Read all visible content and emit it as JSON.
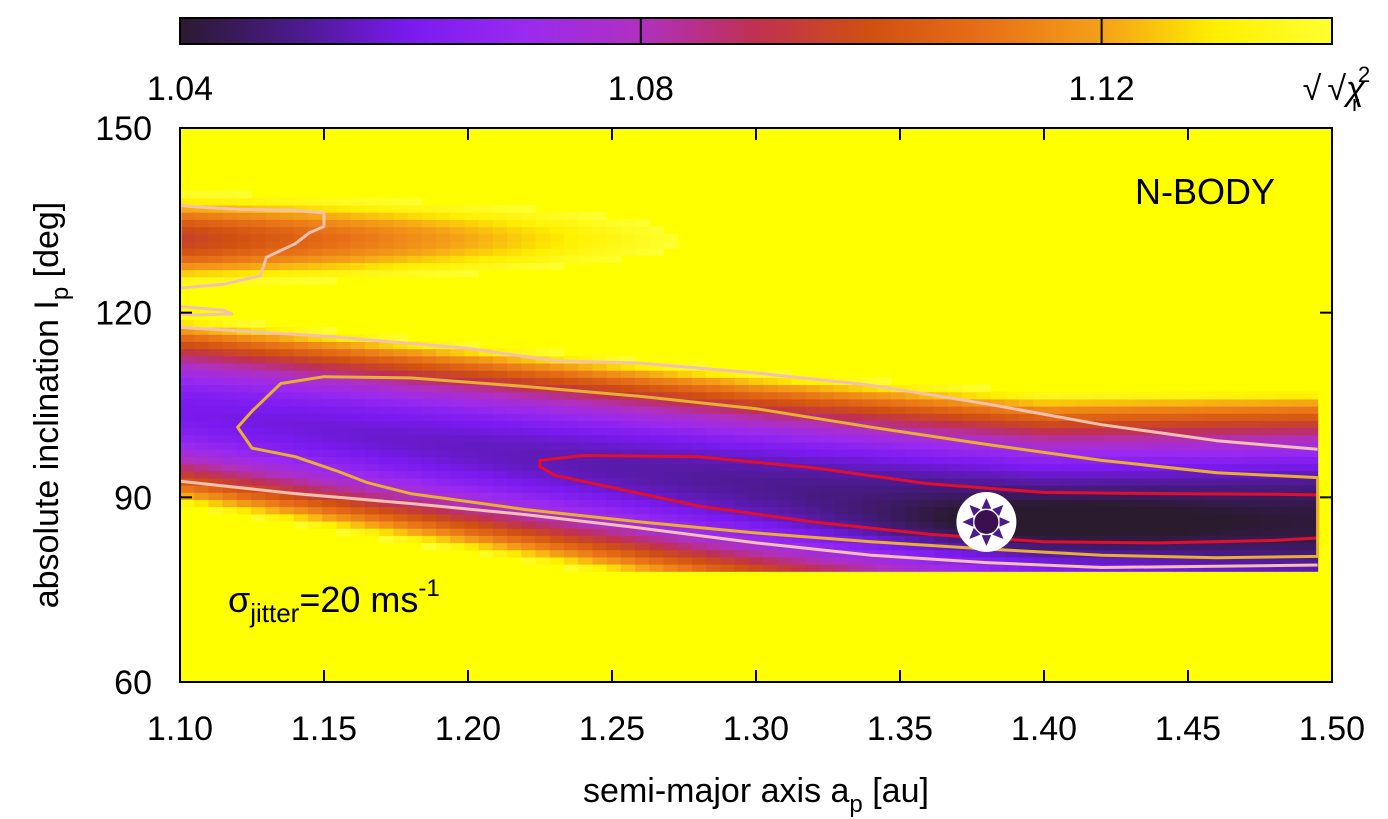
{
  "chart_data": {
    "type": "heatmap",
    "panel_label": "N-BODY",
    "x_axis": {
      "label_prefix": "semi-major axis a",
      "label_sub": "p",
      "label_suffix": " [au]",
      "range": [
        1.1,
        1.5
      ],
      "ticks": [
        1.1,
        1.15,
        1.2,
        1.25,
        1.3,
        1.35,
        1.4,
        1.45,
        1.5
      ],
      "tick_labels": [
        "1.10",
        "1.15",
        "1.20",
        "1.25",
        "1.30",
        "1.35",
        "1.40",
        "1.45",
        "1.50"
      ]
    },
    "y_axis": {
      "label_prefix": "absolute inclination I",
      "label_sub": "p",
      "label_suffix": " [deg]",
      "range": [
        60,
        150
      ],
      "ticks": [
        60,
        90,
        120,
        150
      ],
      "tick_labels": [
        "60",
        "90",
        "120",
        "150"
      ]
    },
    "colorbar": {
      "range": [
        1.04,
        1.14
      ],
      "ticks": [
        1.04,
        1.08,
        1.12
      ],
      "tick_labels": [
        "1.04",
        "1.08",
        "1.12"
      ],
      "label": "√χ",
      "label_sup": "2",
      "label_sub": "r",
      "colors": [
        "#2a1a2e",
        "#4a1a8a",
        "#7a1af0",
        "#9a2af0",
        "#b030c0",
        "#c03050",
        "#d05010",
        "#e87018",
        "#f5a018",
        "#fff000",
        "#ffff30"
      ]
    },
    "annotation": {
      "symbol": "σ",
      "sub": "jitter",
      "text": "=20 ms",
      "sup": "-1"
    },
    "best_fit": {
      "a": 1.38,
      "I": 86
    },
    "minimum_valley": {
      "description_points": [
        {
          "a": 1.1,
          "I": 104
        },
        {
          "a": 1.2,
          "I": 98
        },
        {
          "a": 1.3,
          "I": 92
        },
        {
          "a": 1.4,
          "I": 87
        },
        {
          "a": 1.5,
          "I": 86
        }
      ]
    },
    "contours": [
      {
        "name": "1-sigma",
        "color": "#e0102a",
        "points": [
          [
            1.225,
            96
          ],
          [
            1.24,
            96.8
          ],
          [
            1.28,
            96.6
          ],
          [
            1.32,
            94.8
          ],
          [
            1.36,
            92.2
          ],
          [
            1.4,
            90.8
          ],
          [
            1.44,
            90.6
          ],
          [
            1.48,
            90.5
          ],
          [
            1.495,
            90.4
          ],
          [
            1.495,
            83.4
          ],
          [
            1.48,
            83
          ],
          [
            1.44,
            82.6
          ],
          [
            1.4,
            82.8
          ],
          [
            1.36,
            84
          ],
          [
            1.32,
            86
          ],
          [
            1.28,
            88.6
          ],
          [
            1.25,
            91.6
          ],
          [
            1.23,
            93.6
          ],
          [
            1.225,
            95
          ]
        ]
      },
      {
        "name": "2-sigma",
        "color": "#e8b030",
        "points": [
          [
            1.125,
            104
          ],
          [
            1.135,
            108.5
          ],
          [
            1.15,
            109.6
          ],
          [
            1.18,
            109.4
          ],
          [
            1.22,
            108
          ],
          [
            1.26,
            106.4
          ],
          [
            1.3,
            104.4
          ],
          [
            1.34,
            101.4
          ],
          [
            1.38,
            98.6
          ],
          [
            1.42,
            96
          ],
          [
            1.46,
            94
          ],
          [
            1.495,
            93.2
          ],
          [
            1.495,
            80.4
          ],
          [
            1.46,
            80.2
          ],
          [
            1.42,
            80.6
          ],
          [
            1.38,
            81.6
          ],
          [
            1.34,
            82.8
          ],
          [
            1.3,
            84.2
          ],
          [
            1.26,
            86
          ],
          [
            1.22,
            88
          ],
          [
            1.18,
            90.6
          ],
          [
            1.165,
            92.4
          ],
          [
            1.155,
            94.2
          ],
          [
            1.14,
            96.6
          ],
          [
            1.125,
            98
          ],
          [
            1.12,
            101.4
          ]
        ]
      },
      {
        "name": "3-sigma-upper",
        "color": "#f4c0b0",
        "points": [
          [
            1.1,
            117.6
          ],
          [
            1.15,
            116.2
          ],
          [
            1.2,
            114.2
          ],
          [
            1.23,
            112.2
          ],
          [
            1.26,
            111.8
          ],
          [
            1.3,
            110.2
          ],
          [
            1.34,
            108.2
          ],
          [
            1.38,
            105.2
          ],
          [
            1.42,
            101.8
          ],
          [
            1.46,
            99.2
          ],
          [
            1.495,
            97.8
          ]
        ]
      },
      {
        "name": "3-sigma-lower",
        "color": "#f4c0b0",
        "points": [
          [
            1.1,
            92.6
          ],
          [
            1.14,
            90.6
          ],
          [
            1.18,
            89
          ],
          [
            1.22,
            87.2
          ],
          [
            1.26,
            85
          ],
          [
            1.3,
            82.6
          ],
          [
            1.34,
            80.6
          ],
          [
            1.38,
            79.4
          ],
          [
            1.42,
            78.6
          ],
          [
            1.46,
            78.8
          ],
          [
            1.495,
            79
          ]
        ]
      },
      {
        "name": "3-sigma-island",
        "color": "#f4c0b0",
        "points": [
          [
            1.1,
            124
          ],
          [
            1.115,
            124.6
          ],
          [
            1.128,
            126
          ],
          [
            1.13,
            129
          ],
          [
            1.14,
            131.2
          ],
          [
            1.145,
            133
          ],
          [
            1.15,
            134
          ],
          [
            1.15,
            136.2
          ],
          [
            1.14,
            136.6
          ],
          [
            1.12,
            136.8
          ],
          [
            1.105,
            137.2
          ],
          [
            1.1,
            137.4
          ]
        ]
      },
      {
        "name": "3-sigma-sliver",
        "color": "#f4c0b0",
        "points": [
          [
            1.1,
            121
          ],
          [
            1.115,
            120.4
          ],
          [
            1.118,
            119.8
          ],
          [
            1.105,
            119.6
          ],
          [
            1.1,
            119.8
          ]
        ]
      }
    ]
  }
}
